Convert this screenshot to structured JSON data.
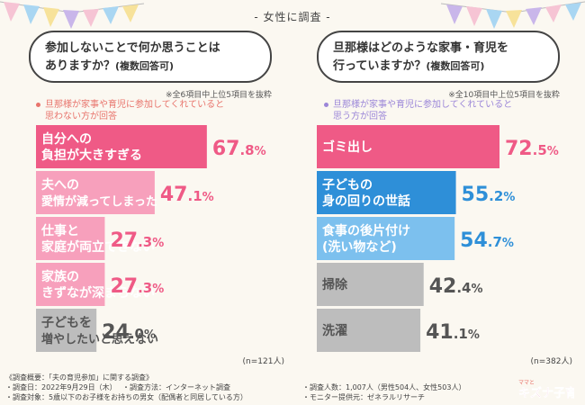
{
  "header": {
    "title": "- 女性に調査 -"
  },
  "left": {
    "question_line1": "参加しないことで何か思うことは",
    "question_line2": "ありますか？",
    "question_note": "(複数回答可)",
    "top_note": "※全6項目中上位5項目を抜粋",
    "criteria_line1": "旦那様が家事や育児に参加してくれていると",
    "criteria_line2": "思わない方が回答",
    "n": "(n=121人)"
  },
  "right": {
    "question_line1": "旦那様はどのような家事・育児を",
    "question_line2": "行っていますか？",
    "question_note": "(複数回答可)",
    "top_note": "※全10項目中上位5項目を抜粋",
    "criteria_line1": "旦那様が家事や育児に参加してくれていると",
    "criteria_line2": "思う方が回答",
    "n": "(n=382人)"
  },
  "footer": {
    "l1c1": "《調査概要：「夫の育児参加」に関する調査》",
    "l2c1": "・調査日：2022年9月29日（木）",
    "l2c2": "・調査方法：インターネット調査",
    "l2c3": "・調査人数：1,007人（男性504人、女性503人）",
    "l3c1": "・調査対象：5歳以下のお子様をお持ちの男女（配偶者と同居している方）",
    "l3c3": "・モニター提供元：ゼネラルリサーチ"
  },
  "logo": {
    "text": "キズナ子育て",
    "small_text": "ママと"
  },
  "colors": {
    "pink_dark": "#ef5a86",
    "pink_light": "#f7a0bc",
    "blue_dark": "#2e8fd8",
    "blue_light": "#7cc0ee",
    "gray": "#bdbdbd",
    "gray_light": "#d6d6d6",
    "crit_left": "#e8746c",
    "crit_right": "#9b86d8"
  },
  "chart_data": [
    {
      "type": "bar",
      "orientation": "horizontal",
      "title": "参加しないことで何か思うことはありますか？(複数回答可)",
      "categories": [
        [
          "自分への",
          "負担が大きすぎる"
        ],
        [
          "夫への",
          "愛情が減ってしまった"
        ],
        [
          "仕事と",
          "家庭が両立できない"
        ],
        [
          "家族の",
          "きずなが深まらない"
        ],
        [
          "子どもを",
          "増やしたいと思えない"
        ]
      ],
      "values": [
        67.8,
        47.1,
        27.3,
        27.3,
        24.0
      ],
      "value_labels": [
        [
          "67",
          ".8",
          "%"
        ],
        [
          "47",
          ".1",
          "%"
        ],
        [
          "27",
          ".3",
          "%"
        ],
        [
          "27",
          ".3",
          "%"
        ],
        [
          "24",
          ".0",
          "%"
        ]
      ],
      "bar_styles": [
        "pink_dark",
        "pink_light",
        "pink_light",
        "pink_light",
        "gray"
      ],
      "xlim": [
        0,
        100
      ],
      "n": "(n=121人)"
    },
    {
      "type": "bar",
      "orientation": "horizontal",
      "title": "旦那様はどのような家事・育児を行っていますか？(複数回答可)",
      "categories": [
        [
          "ゴミ出し"
        ],
        [
          "子どもの",
          "身の回りの世話"
        ],
        [
          "食事の後片付け",
          "(洗い物など)"
        ],
        [
          "掃除"
        ],
        [
          "洗濯"
        ]
      ],
      "values": [
        72.5,
        55.2,
        54.7,
        42.4,
        41.1
      ],
      "value_labels": [
        [
          "72",
          ".5",
          "%"
        ],
        [
          "55",
          ".2",
          "%"
        ],
        [
          "54",
          ".7",
          "%"
        ],
        [
          "42",
          ".4",
          "%"
        ],
        [
          "41",
          ".1",
          "%"
        ]
      ],
      "bar_styles": [
        "pink_dark",
        "blue_dark",
        "blue_light",
        "gray",
        "gray"
      ],
      "xlim": [
        0,
        100
      ],
      "n": "(n=382人)"
    }
  ]
}
